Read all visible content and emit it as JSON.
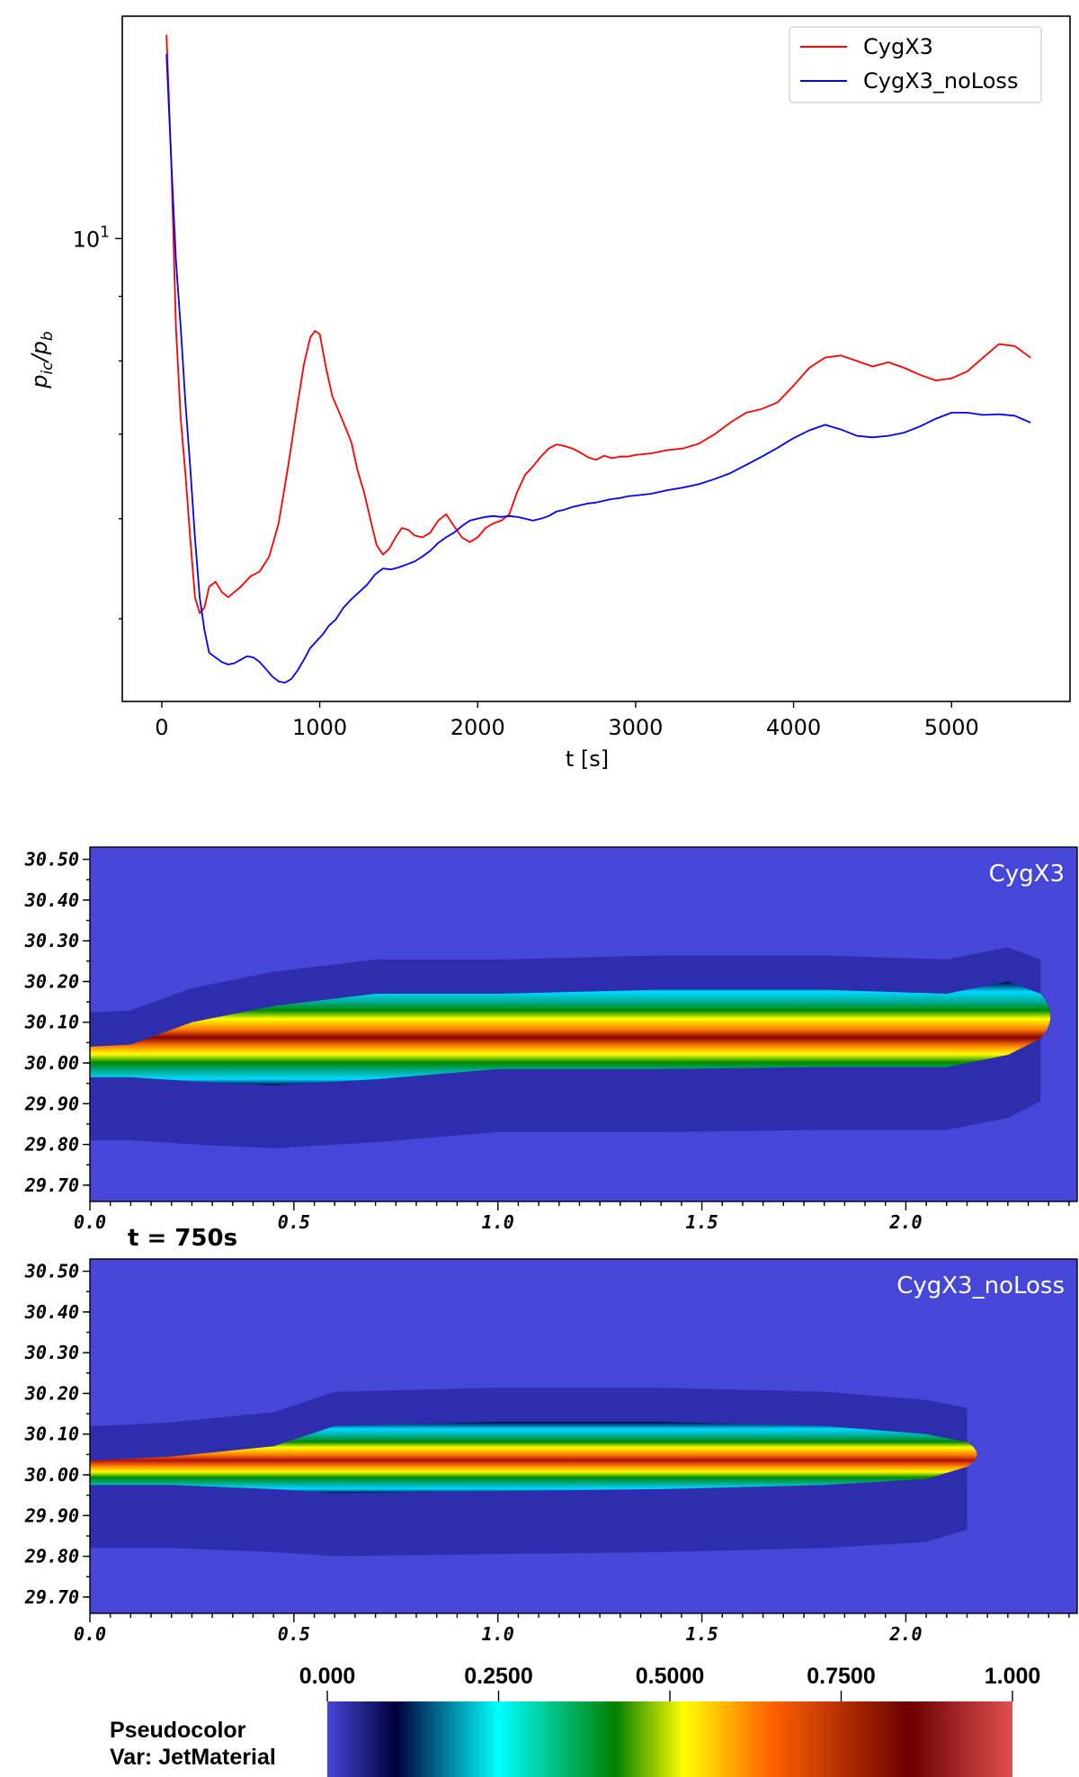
{
  "chart_data": [
    {
      "type": "line",
      "xlabel": "t [s]",
      "ylabel_html": "p_ic/p_b",
      "ylabel_main": "p",
      "ylabel_sub1": "ic",
      "ylabel_sub2": "b",
      "yscale": "log",
      "xlim": [
        -250,
        5750
      ],
      "ylim": [
        4.3,
        15.0
      ],
      "x_ticks": [
        0,
        1000,
        2000,
        3000,
        4000,
        5000
      ],
      "x_tick_labels": [
        "0",
        "1000",
        "2000",
        "3000",
        "4000",
        "5000"
      ],
      "y_tick_label_base": "10",
      "y_tick_label_exp": "1",
      "y_tick_value": 10,
      "legend_position": "top-right",
      "series": [
        {
          "name": "CygX3",
          "color": "#ff0000",
          "x": [
            30,
            60,
            90,
            120,
            150,
            180,
            210,
            240,
            270,
            300,
            340,
            380,
            420,
            460,
            500,
            560,
            620,
            680,
            740,
            800,
            860,
            900,
            940,
            970,
            1000,
            1040,
            1080,
            1120,
            1160,
            1200,
            1240,
            1280,
            1320,
            1360,
            1400,
            1440,
            1480,
            1520,
            1560,
            1600,
            1650,
            1700,
            1750,
            1800,
            1850,
            1900,
            1950,
            2000,
            2050,
            2100,
            2150,
            2200,
            2250,
            2300,
            2350,
            2400,
            2450,
            2500,
            2550,
            2600,
            2650,
            2700,
            2750,
            2800,
            2850,
            2900,
            2950,
            3000,
            3100,
            3200,
            3300,
            3400,
            3500,
            3600,
            3700,
            3800,
            3900,
            4000,
            4100,
            4200,
            4300,
            4400,
            4500,
            4600,
            4700,
            4800,
            4900,
            5000,
            5100,
            5200,
            5300,
            5400,
            5500
          ],
          "y": [
            14.5,
            11.5,
            8.5,
            7.2,
            6.5,
            5.8,
            5.2,
            5.05,
            5.1,
            5.3,
            5.35,
            5.25,
            5.2,
            5.25,
            5.3,
            5.4,
            5.45,
            5.6,
            5.95,
            6.6,
            7.4,
            7.95,
            8.35,
            8.45,
            8.4,
            7.9,
            7.5,
            7.3,
            7.1,
            6.9,
            6.55,
            6.3,
            6.0,
            5.72,
            5.62,
            5.68,
            5.8,
            5.9,
            5.88,
            5.82,
            5.8,
            5.85,
            5.98,
            6.05,
            5.92,
            5.8,
            5.75,
            5.8,
            5.9,
            5.95,
            5.98,
            6.05,
            6.3,
            6.5,
            6.6,
            6.72,
            6.82,
            6.87,
            6.85,
            6.82,
            6.77,
            6.71,
            6.68,
            6.73,
            6.7,
            6.72,
            6.72,
            6.74,
            6.76,
            6.8,
            6.82,
            6.88,
            7.0,
            7.15,
            7.28,
            7.33,
            7.42,
            7.65,
            7.9,
            8.05,
            8.08,
            8.0,
            7.92,
            7.98,
            7.9,
            7.8,
            7.72,
            7.75,
            7.85,
            8.05,
            8.25,
            8.22,
            8.05
          ]
        },
        {
          "name": "CygX3_noLoss",
          "color": "#0000ff",
          "x": [
            30,
            60,
            90,
            120,
            150,
            180,
            210,
            240,
            270,
            300,
            340,
            380,
            420,
            460,
            500,
            540,
            580,
            620,
            660,
            700,
            740,
            780,
            820,
            860,
            900,
            940,
            980,
            1020,
            1060,
            1100,
            1150,
            1200,
            1250,
            1300,
            1350,
            1400,
            1450,
            1500,
            1550,
            1600,
            1650,
            1700,
            1750,
            1800,
            1850,
            1900,
            1950,
            2000,
            2050,
            2100,
            2150,
            2200,
            2250,
            2300,
            2350,
            2400,
            2450,
            2500,
            2550,
            2600,
            2650,
            2700,
            2750,
            2800,
            2850,
            2900,
            2950,
            3000,
            3100,
            3200,
            3300,
            3400,
            3500,
            3600,
            3700,
            3800,
            3900,
            4000,
            4100,
            4200,
            4300,
            4400,
            4500,
            4600,
            4700,
            4800,
            4900,
            5000,
            5100,
            5200,
            5300,
            5400,
            5500
          ],
          "y": [
            14.0,
            11.5,
            9.6,
            8.5,
            7.4,
            6.6,
            5.8,
            5.2,
            4.9,
            4.7,
            4.66,
            4.62,
            4.6,
            4.61,
            4.64,
            4.67,
            4.66,
            4.62,
            4.56,
            4.5,
            4.46,
            4.45,
            4.48,
            4.55,
            4.64,
            4.74,
            4.8,
            4.86,
            4.94,
            4.99,
            5.1,
            5.18,
            5.25,
            5.32,
            5.42,
            5.48,
            5.47,
            5.49,
            5.52,
            5.55,
            5.6,
            5.66,
            5.74,
            5.8,
            5.85,
            5.92,
            5.98,
            6.0,
            6.02,
            6.03,
            6.02,
            6.03,
            6.02,
            6.0,
            5.98,
            6.0,
            6.03,
            6.08,
            6.1,
            6.13,
            6.15,
            6.17,
            6.18,
            6.2,
            6.22,
            6.23,
            6.25,
            6.26,
            6.28,
            6.32,
            6.35,
            6.39,
            6.45,
            6.52,
            6.62,
            6.72,
            6.83,
            6.95,
            7.05,
            7.12,
            7.06,
            6.98,
            6.96,
            6.98,
            7.02,
            7.1,
            7.2,
            7.28,
            7.28,
            7.25,
            7.26,
            7.24,
            7.15
          ]
        }
      ]
    },
    {
      "type": "heatmap",
      "title": "t = 750s",
      "panels": [
        {
          "label": "CygX3"
        },
        {
          "label": "CygX3_noLoss"
        }
      ],
      "x_ticks": [
        0.0,
        0.5,
        1.0,
        1.5,
        2.0
      ],
      "x_tick_labels": [
        "0.0",
        "0.5",
        "1.0",
        "1.5",
        "2.0"
      ],
      "xlim": [
        0.0,
        2.42
      ],
      "y_ticks": [
        30.5,
        30.4,
        30.3,
        30.2,
        30.1,
        30.0,
        29.9,
        29.8,
        29.7
      ],
      "y_tick_labels": [
        "30.50",
        "30.40",
        "30.30",
        "30.20",
        "30.10",
        "30.00",
        "29.90",
        "29.80",
        "29.70"
      ],
      "ylim": [
        29.66,
        30.53
      ],
      "colorbar": {
        "title": "Pseudocolor",
        "var_label": "Var: JetMaterial",
        "tick_values": [
          0.0,
          0.25,
          0.5,
          0.75,
          1.0
        ],
        "tick_labels": [
          "0.000",
          "0.2500",
          "0.5000",
          "0.7500",
          "1.000"
        ],
        "colors": [
          "#4646d8",
          "#00003c",
          "#00ffff",
          "#008000",
          "#ffff00",
          "#ff6000",
          "#6b0000",
          "#e05050"
        ]
      }
    }
  ]
}
